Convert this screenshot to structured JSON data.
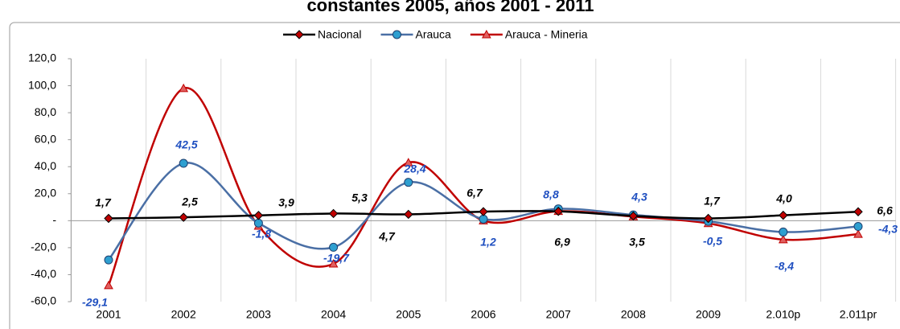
{
  "chart_data": {
    "type": "line",
    "title": "constantes 2005, años 2001 - 2011",
    "categories": [
      "2001",
      "2002",
      "2003",
      "2004",
      "2005",
      "2006",
      "2007",
      "2008",
      "2009",
      "2.010p",
      "2.011pr"
    ],
    "series": [
      {
        "name": "Nacional",
        "color": "#000000",
        "marker": "diamond",
        "marker_color": "#c00000",
        "values": [
          1.7,
          2.5,
          3.9,
          5.3,
          4.7,
          6.7,
          6.9,
          3.5,
          1.7,
          4.0,
          6.6
        ],
        "value_labels": [
          "1,7",
          "2,5",
          "3,9",
          "5,3",
          "4,7",
          "6,7",
          "6,9",
          "3,5",
          "1,7",
          "4,0",
          "6,6"
        ]
      },
      {
        "name": "Arauca",
        "color": "#4a6fa5",
        "marker": "circle",
        "marker_color": "#2e9fd0",
        "values": [
          -29.1,
          42.5,
          -1.8,
          -19.7,
          28.4,
          1.2,
          8.8,
          4.3,
          -0.5,
          -8.4,
          -4.3
        ],
        "value_labels": [
          "-29,1",
          "42,5",
          "-1,8",
          "-19,7",
          "28,4",
          "1,2",
          "8,8",
          "4,3",
          "-0,5",
          "-8,4",
          "-4,3"
        ]
      },
      {
        "name": "Arauca - Mineria",
        "color": "#c00000",
        "marker": "triangle",
        "marker_color": "#e06060",
        "values": [
          -48,
          98,
          -4,
          -32,
          43,
          0,
          7,
          3,
          -2,
          -14,
          -10
        ]
      }
    ],
    "ylim": [
      -60,
      120
    ],
    "yticks": [
      {
        "value": -60,
        "label": "-60,0"
      },
      {
        "value": -40,
        "label": "-40,0"
      },
      {
        "value": -20,
        "label": "-20,0"
      },
      {
        "value": 0,
        "label": "-"
      },
      {
        "value": 20,
        "label": "20,0"
      },
      {
        "value": 40,
        "label": "40,0"
      },
      {
        "value": 60,
        "label": "60,0"
      },
      {
        "value": 80,
        "label": "80,0"
      },
      {
        "value": 100,
        "label": "100,0"
      },
      {
        "value": 120,
        "label": "120,0"
      }
    ],
    "smooth": true,
    "legend": "top"
  }
}
